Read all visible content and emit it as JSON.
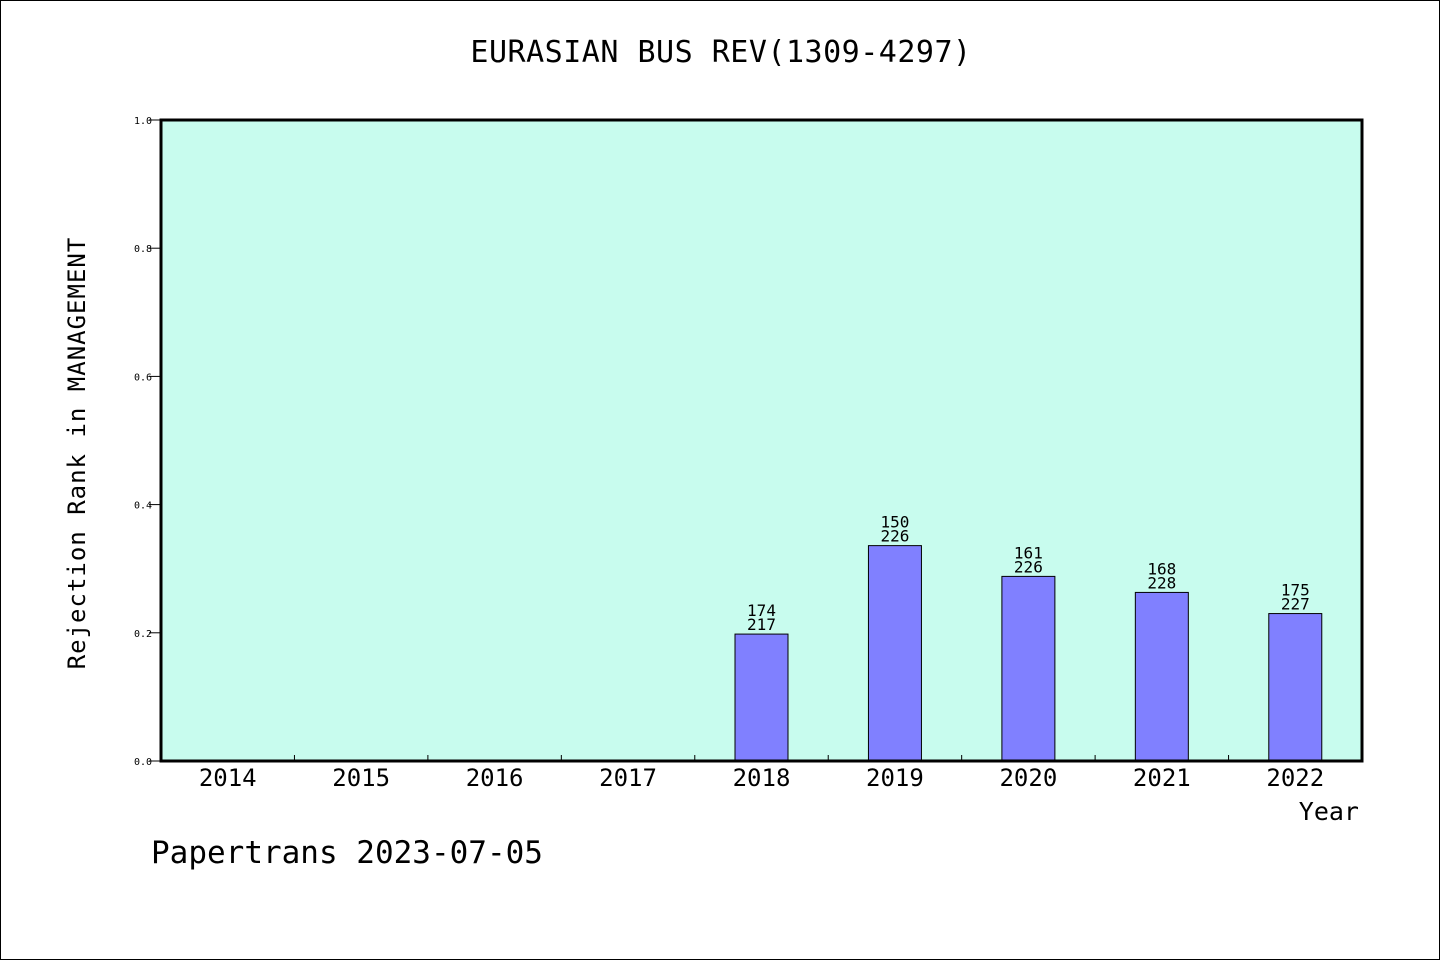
{
  "chart_data": {
    "type": "bar",
    "title": "EURASIAN BUS REV(1309-4297)",
    "xlabel": "Year",
    "ylabel": "Rejection Rank in MANAGEMENT",
    "categories": [
      "2014",
      "2015",
      "2016",
      "2017",
      "2018",
      "2019",
      "2020",
      "2021",
      "2022"
    ],
    "values": [
      null,
      null,
      null,
      null,
      0.198,
      0.336,
      0.288,
      0.263,
      0.23
    ],
    "bar_labels": [
      null,
      null,
      null,
      null,
      {
        "top": "174",
        "bottom": "217"
      },
      {
        "top": "150",
        "bottom": "226"
      },
      {
        "top": "161",
        "bottom": "226"
      },
      {
        "top": "168",
        "bottom": "228"
      },
      {
        "top": "175",
        "bottom": "227"
      }
    ],
    "ylim": [
      0.0,
      1.0
    ],
    "yticks": [
      "0.0",
      "0.2",
      "0.4",
      "0.6",
      "0.8",
      "1.0"
    ],
    "grid": false,
    "legend": "none",
    "colors": {
      "plot_background": "#c8fcee",
      "bar_fill": "#8080ff",
      "bar_stroke": "#000000",
      "axis": "#000000"
    }
  },
  "footer": {
    "credit": "Papertrans 2023-07-05"
  }
}
